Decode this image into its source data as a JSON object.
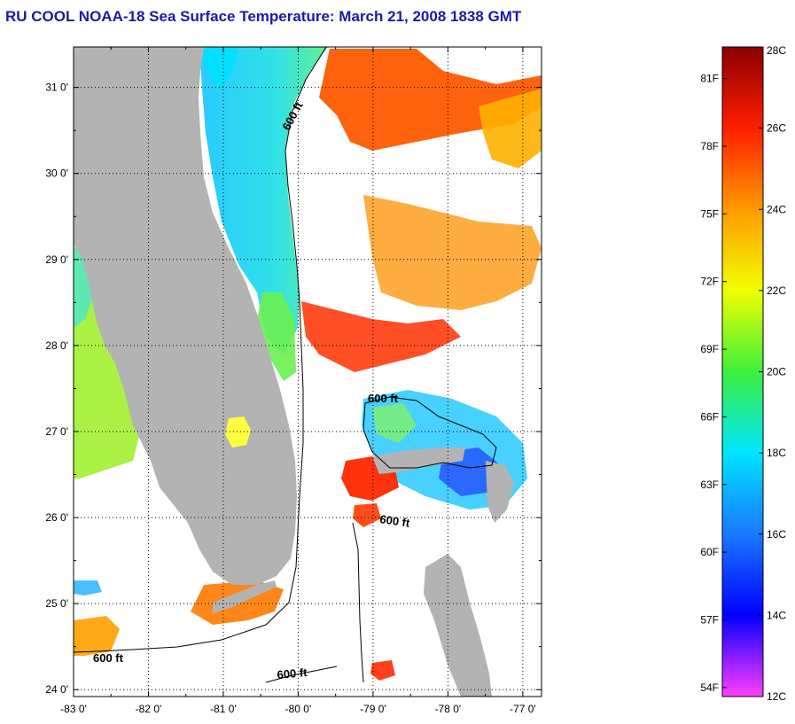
{
  "title": "RU COOL  NOAA-18  Sea Surface Temperature:  March 21, 2008 1838 GMT",
  "map": {
    "lon_range": [
      -83.0,
      -76.75
    ],
    "lat_range": [
      23.92,
      31.47
    ],
    "x_ticks": [
      {
        "value": -83,
        "label": "-83 0'"
      },
      {
        "value": -82,
        "label": "-82 0'"
      },
      {
        "value": -81,
        "label": "-81 0'"
      },
      {
        "value": -80,
        "label": "-80 0'"
      },
      {
        "value": -79,
        "label": "-79 0'"
      },
      {
        "value": -78,
        "label": "-78 0'"
      },
      {
        "value": -77,
        "label": "-77 0'"
      }
    ],
    "y_ticks": [
      {
        "value": 31,
        "label": "31 0'"
      },
      {
        "value": 30,
        "label": "30 0'"
      },
      {
        "value": 29,
        "label": "29 0'"
      },
      {
        "value": 28,
        "label": "28 0'"
      },
      {
        "value": 27,
        "label": "27 0'"
      },
      {
        "value": 26,
        "label": "26 0'"
      },
      {
        "value": 25,
        "label": "25 0'"
      },
      {
        "value": 24,
        "label": "24 0'"
      }
    ],
    "isobath_labels": [
      "600 ft",
      "600 ft",
      "600 ft",
      "600 ft",
      "600 ft"
    ],
    "land_color": "#b3b3b3",
    "grid": true
  },
  "colorbar": {
    "celsius_range": [
      12,
      28
    ],
    "celsius_labels": [
      "28C",
      "26C",
      "24C",
      "22C",
      "20C",
      "18C",
      "16C",
      "14C",
      "12C"
    ],
    "celsius_values": [
      28,
      26,
      24,
      22,
      20,
      18,
      16,
      14,
      12
    ],
    "fahrenheit_labels": [
      "81F",
      "78F",
      "75F",
      "72F",
      "69F",
      "66F",
      "63F",
      "60F",
      "57F",
      "54F"
    ],
    "fahrenheit_values": [
      81,
      78,
      75,
      72,
      69,
      66,
      63,
      60,
      57,
      54
    ]
  }
}
